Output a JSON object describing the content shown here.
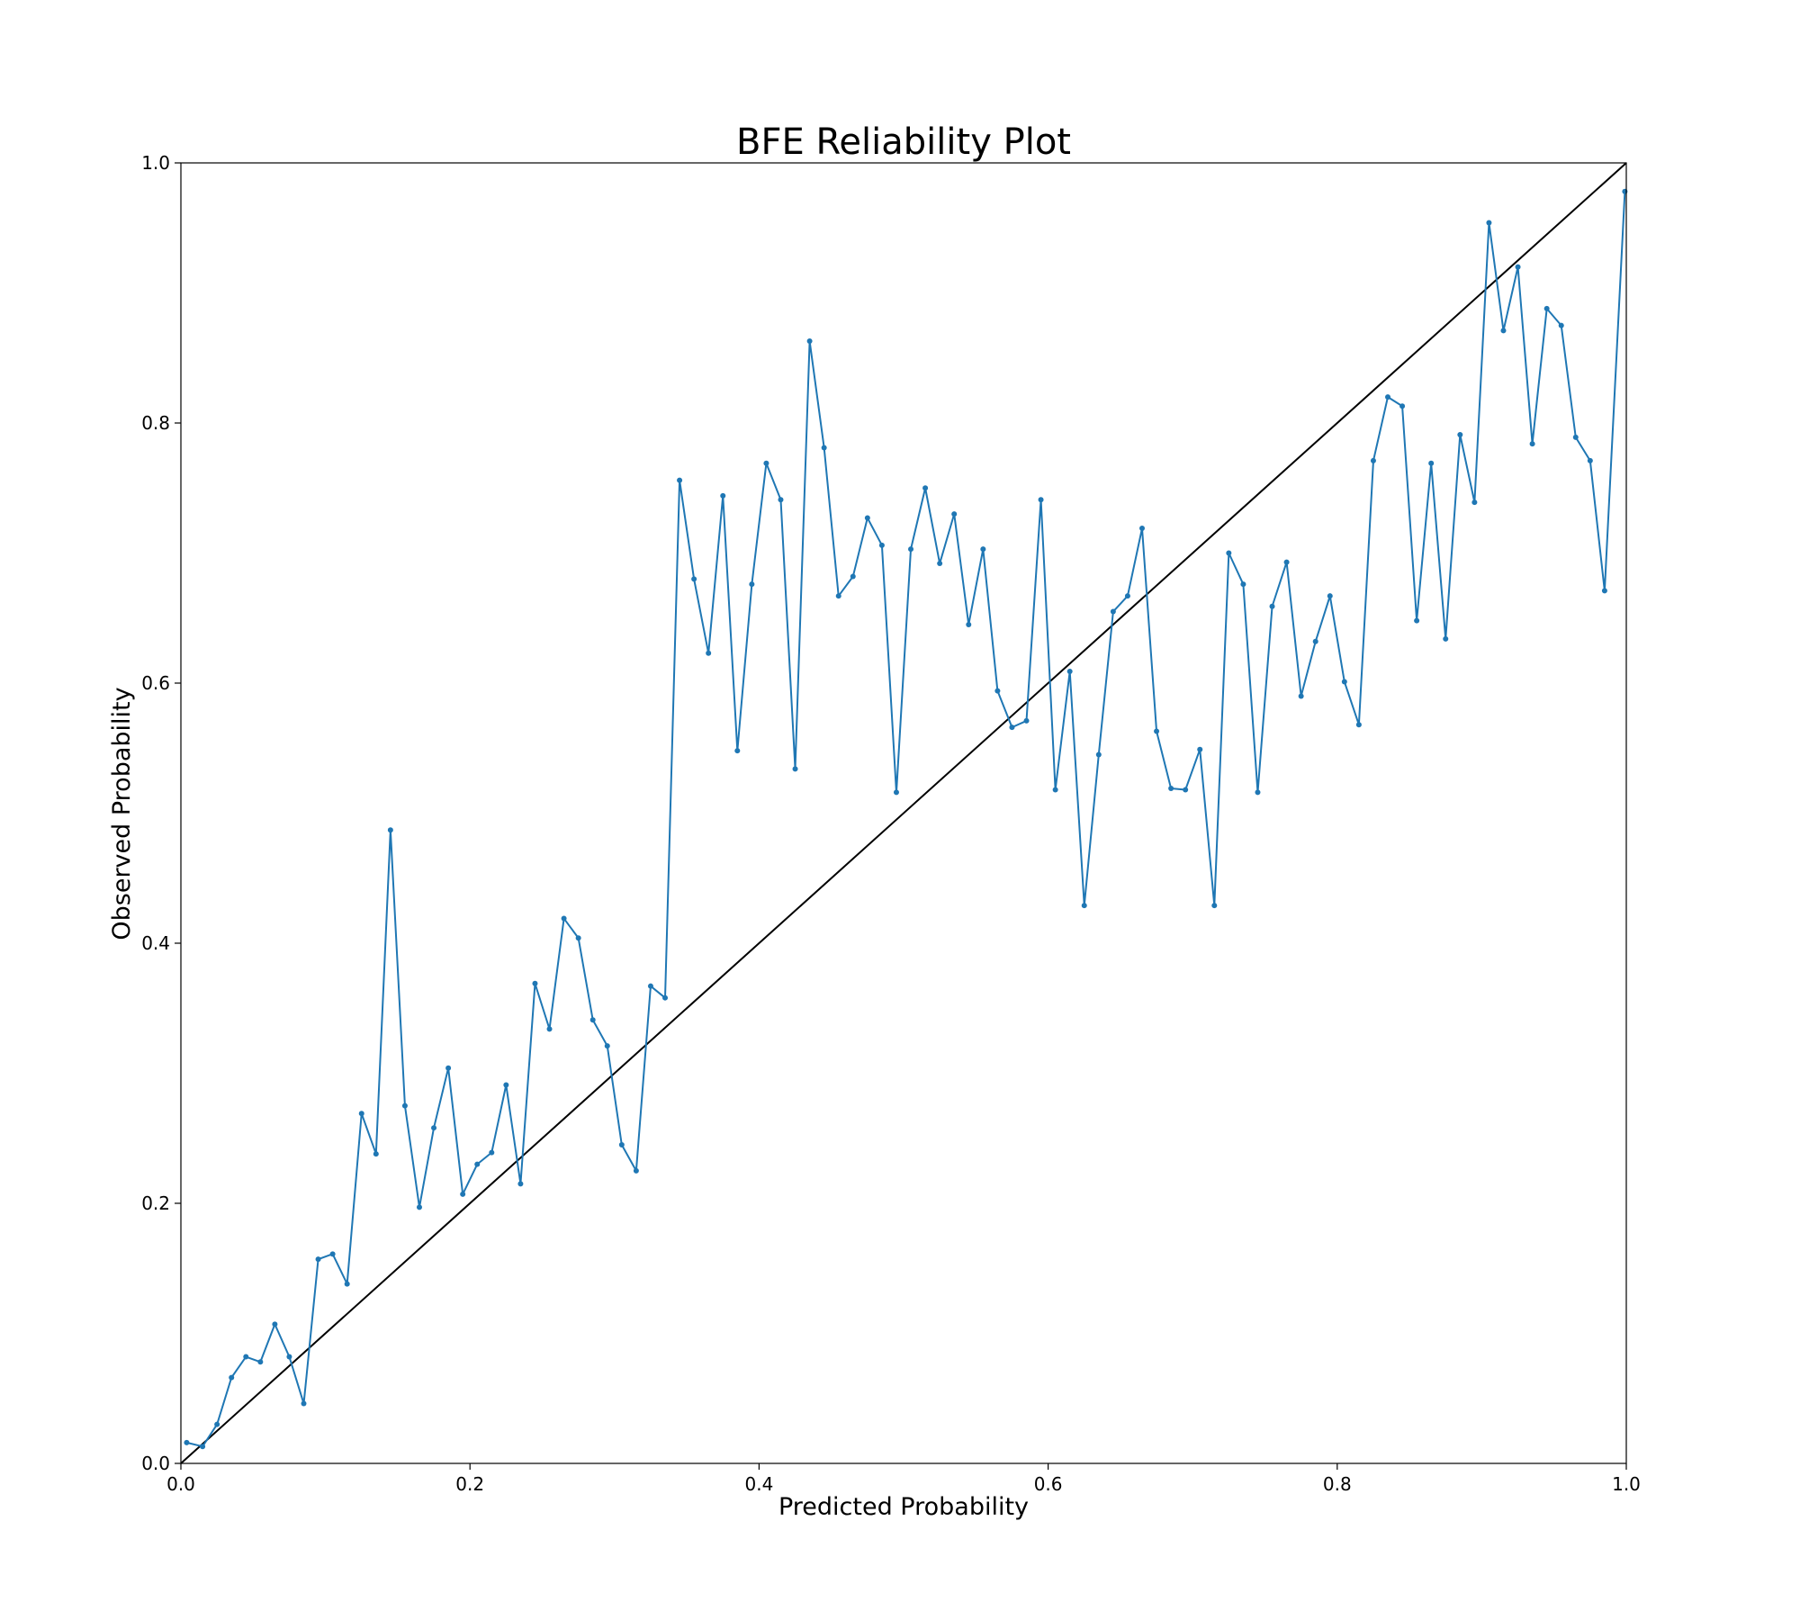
{
  "chart_data": {
    "type": "line",
    "title": "BFE Reliability Plot",
    "xlabel": "Predicted Probability",
    "ylabel": "Observed Probability",
    "xlim": [
      0.0,
      1.0
    ],
    "ylim": [
      0.0,
      1.0
    ],
    "xticks": [
      "0.0",
      "0.2",
      "0.4",
      "0.6",
      "0.8",
      "1.0"
    ],
    "yticks": [
      "0.0",
      "0.2",
      "0.4",
      "0.6",
      "0.8",
      "1.0"
    ],
    "grid": false,
    "legend": "none",
    "reference_line": {
      "x": [
        0.0,
        1.0
      ],
      "y": [
        0.0,
        1.0
      ],
      "color": "#000000"
    },
    "series": [
      {
        "color": "#1f77b4",
        "marker": "point",
        "x": [
          0.004,
          0.015,
          0.025,
          0.035,
          0.045,
          0.055,
          0.065,
          0.075,
          0.085,
          0.095,
          0.105,
          0.115,
          0.125,
          0.135,
          0.145,
          0.155,
          0.165,
          0.175,
          0.185,
          0.195,
          0.205,
          0.215,
          0.225,
          0.235,
          0.245,
          0.255,
          0.265,
          0.275,
          0.285,
          0.295,
          0.305,
          0.315,
          0.325,
          0.335,
          0.345,
          0.355,
          0.365,
          0.375,
          0.385,
          0.395,
          0.405,
          0.415,
          0.425,
          0.435,
          0.445,
          0.455,
          0.465,
          0.475,
          0.485,
          0.495,
          0.505,
          0.515,
          0.525,
          0.535,
          0.545,
          0.555,
          0.565,
          0.575,
          0.585,
          0.595,
          0.605,
          0.615,
          0.625,
          0.635,
          0.645,
          0.655,
          0.665,
          0.675,
          0.685,
          0.695,
          0.705,
          0.715,
          0.725,
          0.735,
          0.745,
          0.755,
          0.765,
          0.775,
          0.785,
          0.795,
          0.805,
          0.815,
          0.825,
          0.835,
          0.845,
          0.855,
          0.865,
          0.875,
          0.885,
          0.895,
          0.905,
          0.915,
          0.925,
          0.935,
          0.945,
          0.955,
          0.965,
          0.975,
          0.985,
          0.999
        ],
        "y": [
          0.016,
          0.013,
          0.03,
          0.066,
          0.082,
          0.078,
          0.107,
          0.082,
          0.046,
          0.157,
          0.161,
          0.138,
          0.269,
          0.238,
          0.487,
          0.275,
          0.197,
          0.258,
          0.304,
          0.207,
          0.23,
          0.239,
          0.291,
          0.215,
          0.369,
          0.334,
          0.419,
          0.404,
          0.341,
          0.321,
          0.245,
          0.225,
          0.367,
          0.358,
          0.756,
          0.68,
          0.623,
          0.744,
          0.548,
          0.676,
          0.769,
          0.741,
          0.534,
          0.863,
          0.781,
          0.667,
          0.682,
          0.727,
          0.706,
          0.516,
          0.703,
          0.75,
          0.692,
          0.73,
          0.645,
          0.703,
          0.594,
          0.566,
          0.571,
          0.741,
          0.518,
          0.609,
          0.429,
          0.545,
          0.655,
          0.667,
          0.719,
          0.563,
          0.519,
          0.518,
          0.549,
          0.429,
          0.7,
          0.676,
          0.516,
          0.659,
          0.693,
          0.59,
          0.632,
          0.667,
          0.601,
          0.568,
          0.771,
          0.82,
          0.813,
          0.648,
          0.769,
          0.634,
          0.791,
          0.739,
          0.954,
          0.871,
          0.92,
          0.784,
          0.888,
          0.875,
          0.789,
          0.771,
          0.671,
          0.978
        ]
      }
    ]
  }
}
